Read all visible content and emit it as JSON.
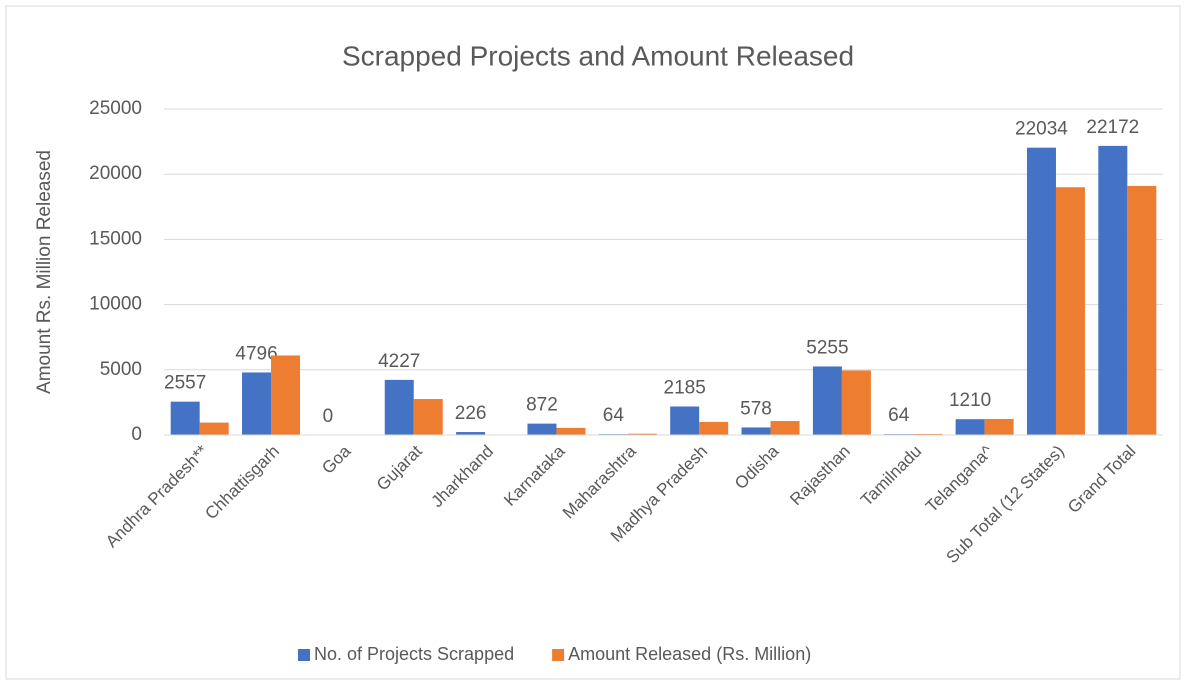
{
  "chart_data": {
    "type": "bar",
    "title": "Scrapped Projects and Amount Released",
    "y_label": "Amount Rs. Million Released",
    "categories": [
      "Andhra Pradesh**",
      "Chhattisgarh",
      "Goa",
      "Gujarat",
      "Jharkhand",
      "Karnataka",
      "Maharashtra",
      "Madhya Pradesh",
      "Odisha",
      "Rajasthan",
      "Tamilnadu",
      "Telangana^",
      "Sub Total (12 States)",
      "Grand Total"
    ],
    "series": [
      {
        "name": "No. of Projects Scrapped",
        "color": "#4472c4",
        "values": [
          2557,
          4796,
          0,
          4227,
          226,
          872,
          64,
          2185,
          578,
          5255,
          64,
          1210,
          22034,
          22172
        ],
        "data_labels": true
      },
      {
        "name": "Amount Released (Rs. Million)",
        "color": "#ed7d31",
        "values": [
          950,
          6100,
          0,
          2760,
          0,
          550,
          100,
          1000,
          1070,
          4950,
          80,
          1230,
          19000,
          19100
        ],
        "data_labels": false
      }
    ],
    "ylim": [
      0,
      25000
    ],
    "yticks": [
      0,
      5000,
      10000,
      15000,
      20000,
      25000
    ],
    "grid": true,
    "legend": "bottom"
  }
}
